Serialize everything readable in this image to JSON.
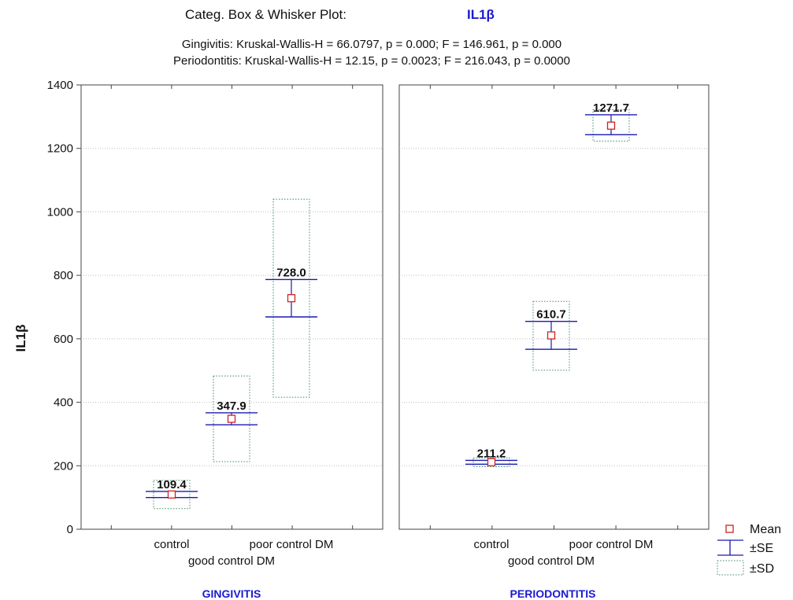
{
  "chart_data": {
    "type": "box",
    "title": "Categ. Box & Whisker Plot:",
    "title_variable": "IL1β",
    "subtitle_lines": [
      "Gingivitis:  Kruskal-Wallis-H = 66.0797, p = 0.000;  F = 146.961, p = 0.000",
      "Periodontitis:  Kruskal-Wallis-H = 12.15, p = 0.0023;  F = 216.043, p = 0.0000"
    ],
    "ylabel": "IL1β",
    "ylim": [
      0,
      1400
    ],
    "yticks": [
      0,
      200,
      400,
      600,
      800,
      1000,
      1200,
      1400
    ],
    "grid": "horizontal dotted",
    "categories": [
      "control",
      "good control DM",
      "poor control DM"
    ],
    "panels": [
      {
        "name": "GINGIVITIS",
        "groups": [
          {
            "category": "control",
            "mean": 109.4,
            "label": "109.4",
            "se_low": 100,
            "se_high": 119,
            "sd_low": 65,
            "sd_high": 154
          },
          {
            "category": "good control DM",
            "mean": 347.9,
            "label": "347.9",
            "se_low": 329,
            "se_high": 367,
            "sd_low": 213,
            "sd_high": 483
          },
          {
            "category": "poor control DM",
            "mean": 728.0,
            "label": "728.0",
            "se_low": 669,
            "se_high": 787,
            "sd_low": 416,
            "sd_high": 1040
          }
        ]
      },
      {
        "name": "PERIODONTITIS",
        "groups": [
          {
            "category": "control",
            "mean": 211.2,
            "label": "211.2",
            "se_low": 205,
            "se_high": 217,
            "sd_low": 197,
            "sd_high": 225
          },
          {
            "category": "good control DM",
            "mean": 610.7,
            "label": "610.7",
            "se_low": 567,
            "se_high": 655,
            "sd_low": 501,
            "sd_high": 718
          },
          {
            "category": "poor control DM",
            "mean": 1271.7,
            "label": "1271.7",
            "se_low": 1243,
            "se_high": 1306,
            "sd_low": 1223,
            "sd_high": 1322
          }
        ]
      }
    ],
    "legend": {
      "position": "bottom-right",
      "entries": [
        {
          "label": "Mean",
          "symbol": "square",
          "color": "#cc2222"
        },
        {
          "label": "±SE",
          "symbol": "whisker",
          "color": "#1a1ab0"
        },
        {
          "label": "±SD",
          "symbol": "dotted-box",
          "color": "#3a8a6a"
        }
      ]
    },
    "colors": {
      "mean": "#cc2222",
      "se": "#1a1ab0",
      "sd": "#3a8a6a",
      "panel_label": "#1a1ad0"
    }
  }
}
